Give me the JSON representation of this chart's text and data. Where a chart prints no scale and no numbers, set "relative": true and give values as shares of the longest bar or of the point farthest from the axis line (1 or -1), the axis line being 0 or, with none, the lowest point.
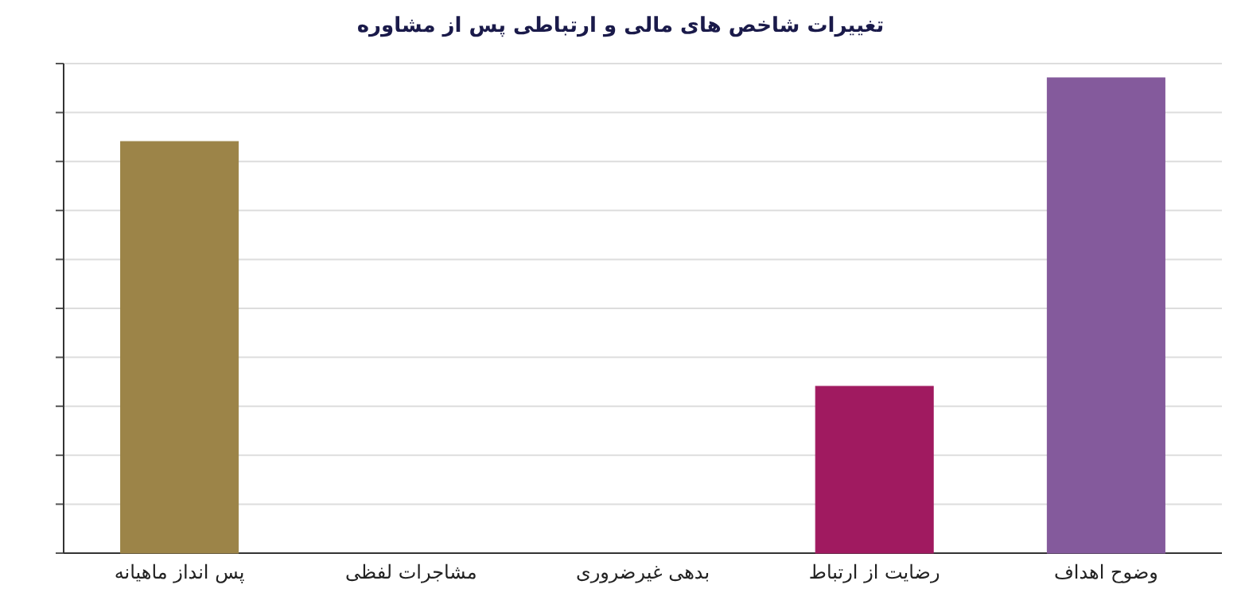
{
  "chart_data": {
    "type": "bar",
    "title": "تغییرات شاخص های مالی و ارتباطی پس از مشاوره",
    "categories": [
      "پس انداز ماهیانه",
      "مشاجرات لفظی",
      "بدهی غیرضروری",
      "رضایت از ارتباط",
      "وضوح اهداف"
    ],
    "values": [
      0.866,
      0,
      0,
      0.351,
      1
    ],
    "colors": [
      "#9c8448",
      "#8a6aa0",
      "#8a6aa0",
      "#a01a60",
      "#845a9c"
    ],
    "relative": true,
    "grid": "y"
  }
}
